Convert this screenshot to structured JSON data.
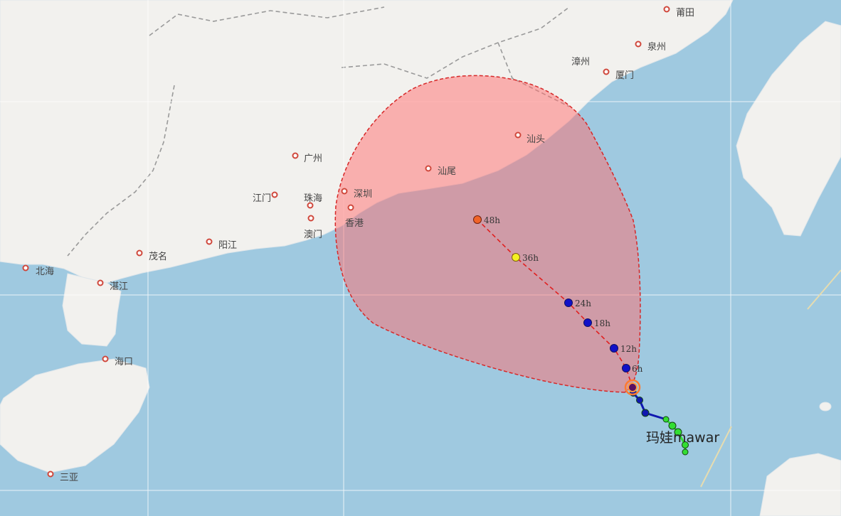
{
  "colors": {
    "sea": "#9fc9e0",
    "land": "#f2f1ee",
    "cone_fill": "#ff7a7a",
    "cone_edge": "#d62828",
    "forecast_dot": "#1010c8",
    "past_track_blue": "#1018b0",
    "past_track_green": "#33dd33",
    "dot_48h": "#f0642a",
    "dot_36h": "#f4f020"
  },
  "cities": [
    {
      "name": "莆田",
      "lon": 119.0,
      "lat": 25.4
    },
    {
      "name": "泉州",
      "lon": 118.6,
      "lat": 24.9
    },
    {
      "name": "漳州",
      "lon": 117.6,
      "lat": 24.5
    },
    {
      "name": "厦门",
      "lon": 118.1,
      "lat": 24.5
    },
    {
      "name": "汕头",
      "lon": 116.7,
      "lat": 23.4
    },
    {
      "name": "汕尾",
      "lon": 115.4,
      "lat": 22.8
    },
    {
      "name": "广州",
      "lon": 113.3,
      "lat": 23.1
    },
    {
      "name": "深圳",
      "lon": 114.1,
      "lat": 22.5
    },
    {
      "name": "香港",
      "lon": 114.2,
      "lat": 22.3
    },
    {
      "name": "珠海",
      "lon": 113.6,
      "lat": 22.3
    },
    {
      "name": "澳门",
      "lon": 113.5,
      "lat": 22.2
    },
    {
      "name": "江门",
      "lon": 113.1,
      "lat": 22.6
    },
    {
      "name": "阳江",
      "lon": 112.0,
      "lat": 21.9
    },
    {
      "name": "茂名",
      "lon": 110.9,
      "lat": 21.7
    },
    {
      "name": "北海",
      "lon": 109.1,
      "lat": 21.5
    },
    {
      "name": "湛江",
      "lon": 110.4,
      "lat": 21.2
    },
    {
      "name": "海口",
      "lon": 110.3,
      "lat": 20.0
    },
    {
      "name": "三亚",
      "lon": 109.5,
      "lat": 18.3
    }
  ],
  "typhoon": {
    "name_cn": "玛娃",
    "name_en": "mawar",
    "forecast": [
      {
        "label": "6h"
      },
      {
        "label": "12h"
      },
      {
        "label": "18h"
      },
      {
        "label": "24h"
      },
      {
        "label": "36h"
      },
      {
        "label": "48h"
      }
    ]
  }
}
